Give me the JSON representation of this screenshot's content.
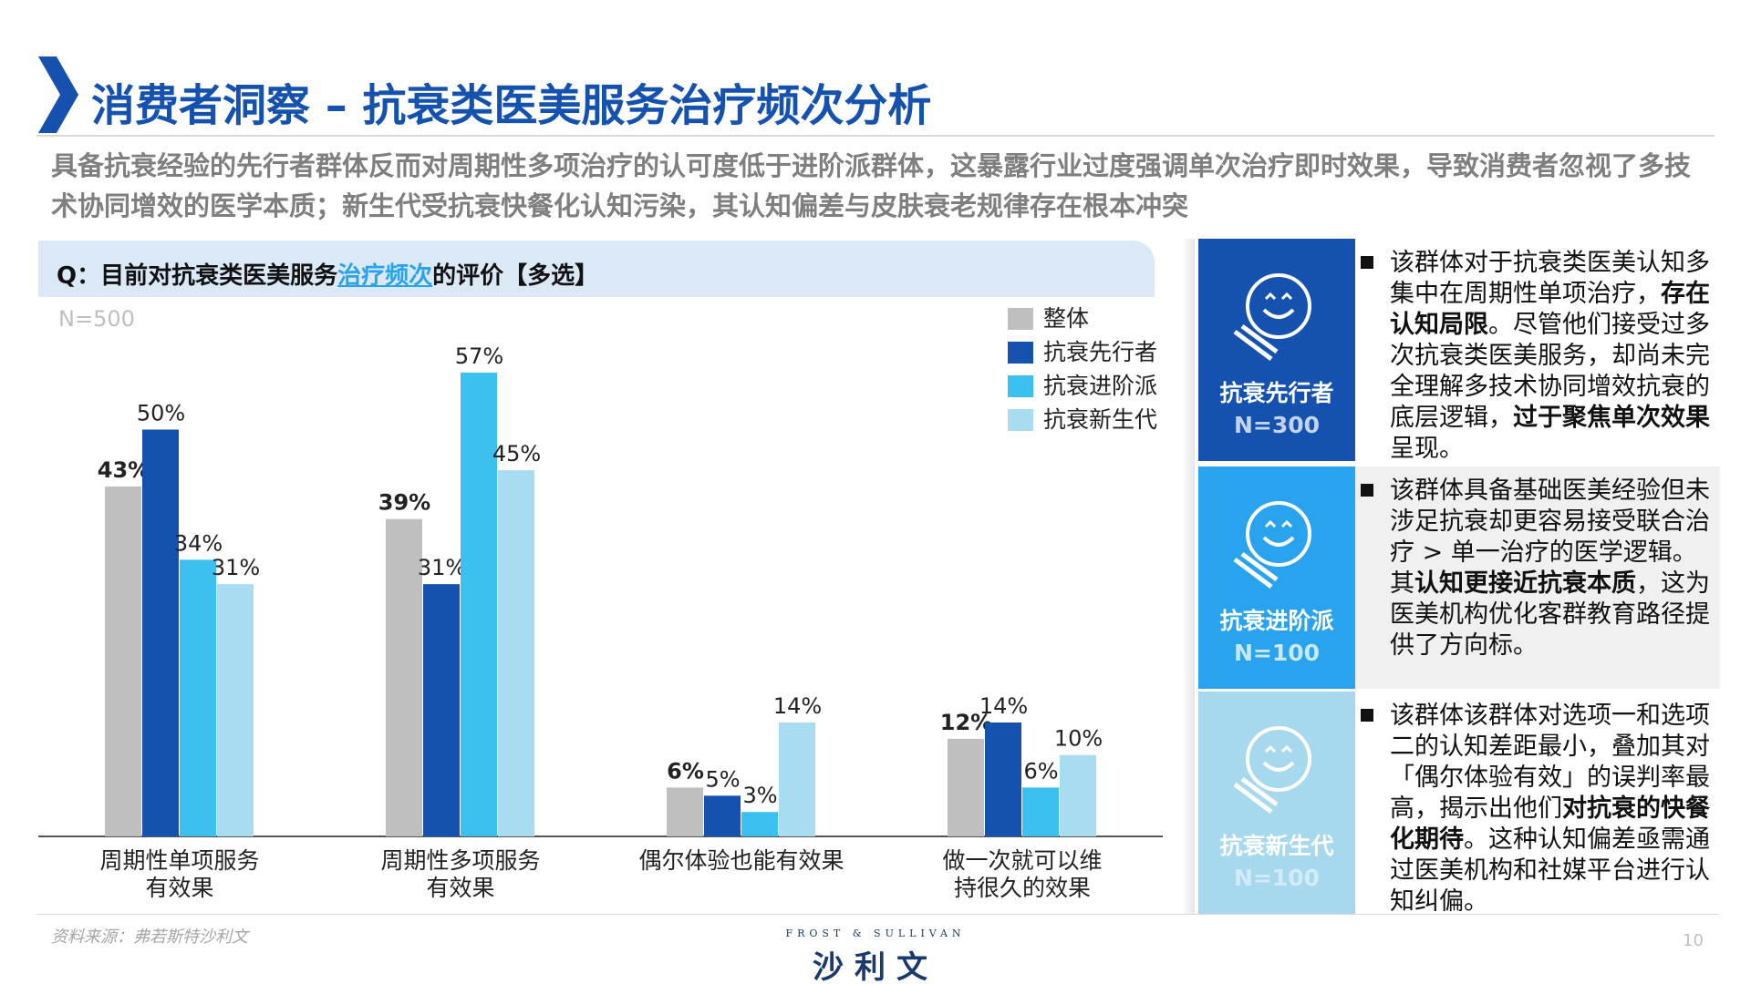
{
  "header": {
    "title": "消费者洞察 – 抗衰类医美服务治疗频次分析"
  },
  "summary": "具备抗衰经验的先行者群体反而对周期性多项治疗的认可度低于进阶派群体，这暴露行业过度强调单次治疗即时效果，导致消费者忽视了多技术协同增效的医学本质；新生代受抗衰快餐化认知污染，其认知偏差与皮肤衰老规律存在根本冲突",
  "chart_data": {
    "type": "bar",
    "title": [
      "Q：目前对抗衰类医美服务",
      "治疗频次",
      "的评价【多选】"
    ],
    "note": "N=500",
    "categories": [
      [
        "周期性单项服务",
        "有效果"
      ],
      [
        "周期性多项服务",
        "有效果"
      ],
      [
        "偶尔体验也能有效果"
      ],
      [
        "做一次就可以维",
        "持很久的效果"
      ]
    ],
    "series": [
      {
        "name": "整体",
        "color": "#bfbfbf",
        "values": [
          43,
          39,
          6,
          12
        ],
        "value_labels": [
          "43%",
          "39%",
          "6%",
          "12%"
        ]
      },
      {
        "name": "抗衰先行者",
        "color": "#1552b0",
        "values": [
          50,
          31,
          5,
          14
        ],
        "value_labels": [
          "50%",
          "31%",
          "5%",
          "14%"
        ]
      },
      {
        "name": "抗衰进阶派",
        "color": "#3bc0f0",
        "values": [
          34,
          57,
          3,
          6
        ],
        "value_labels": [
          "34%",
          "57%",
          "3%",
          "6%"
        ]
      },
      {
        "name": "抗衰新生代",
        "color": "#a8dcf0",
        "values": [
          31,
          45,
          14,
          10
        ],
        "value_labels": [
          "31%",
          "45%",
          "14%",
          "10%"
        ]
      }
    ]
  },
  "groups": [
    {
      "name": "抗衰先行者",
      "n": "N=300",
      "color": "#1552b0",
      "text": [
        "该群体对于抗衰类医美认知多集中在周期性单项治疗，",
        "存在认知局限",
        "。尽管他们接受过多次抗衰类医美服务，却尚未完全理解多技术协同增效抗衰的底层逻辑，",
        "过于聚焦单次效果",
        "呈现。"
      ]
    },
    {
      "name": "抗衰进阶派",
      "n": "N=100",
      "color": "#2aa3ee",
      "text": [
        "该群体具备基础医美经验但未涉足抗衰却更容易接受联合治疗 > 单一治疗的医学逻辑。其",
        "认知更接近抗衰本质",
        "，这为医美机构优化客群教育路径提供了方向标。"
      ]
    },
    {
      "name": "抗衰新生代",
      "n": "N=100",
      "color": "#a6d8ee",
      "text": [
        "该群体该群体对选项一和选项二的认知差距最小，叠加其对「偶尔体验有效」的误判率最高，揭示出他们",
        "对抗衰的快餐化期待",
        "。这种认知偏差亟需通过医美机构和社媒平台进行认知纠偏。"
      ]
    }
  ],
  "footer": {
    "source": "资料来源：弗若斯特沙利文",
    "brand_en": "FROST & SULLIVAN",
    "brand_cn": "沙利文",
    "page": "10"
  }
}
